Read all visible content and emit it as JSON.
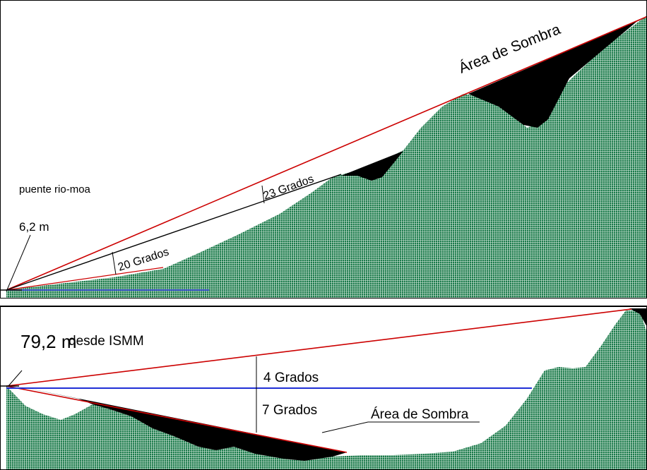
{
  "colors": {
    "terrain": "#1a7a4a",
    "terrain_grid": "#e6f2ea",
    "shadow": "#000000",
    "sight_line": "#cc0000",
    "reference_line": "#1f2fd6",
    "ink": "#000000"
  },
  "top_panel": {
    "location_label": "puente rio-moa",
    "height_label": "6,2 m",
    "angle_upper_label": "23 Grados",
    "angle_lower_label": "20 Grados",
    "shadow_area_label": "Área de Sombra"
  },
  "bottom_panel": {
    "height_label": "79,2 m",
    "height_suffix": "desde ISMM",
    "angle_upper_label": "4 Grados",
    "angle_lower_label": "7 Grados",
    "shadow_area_label": "Área de Sombra"
  }
}
